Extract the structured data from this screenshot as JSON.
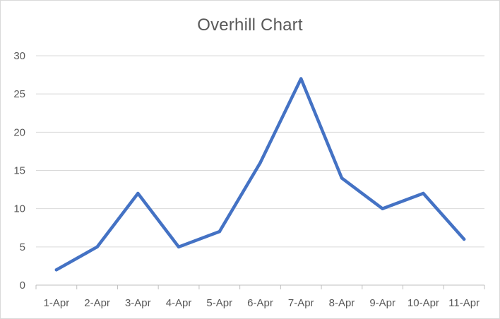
{
  "chart_data": {
    "type": "line",
    "title": "Overhill Chart",
    "xlabel": "",
    "ylabel": "",
    "categories": [
      "1-Apr",
      "2-Apr",
      "3-Apr",
      "4-Apr",
      "5-Apr",
      "6-Apr",
      "7-Apr",
      "8-Apr",
      "9-Apr",
      "10-Apr",
      "11-Apr"
    ],
    "series": [
      {
        "values": [
          2,
          5,
          12,
          5,
          7,
          16,
          27,
          14,
          10,
          12,
          6
        ],
        "color": "#4472c4"
      }
    ],
    "ylim": [
      0,
      30
    ],
    "yticks": [
      "0",
      "5",
      "10",
      "15",
      "20",
      "25",
      "30"
    ],
    "grid": true,
    "legend": "none"
  }
}
